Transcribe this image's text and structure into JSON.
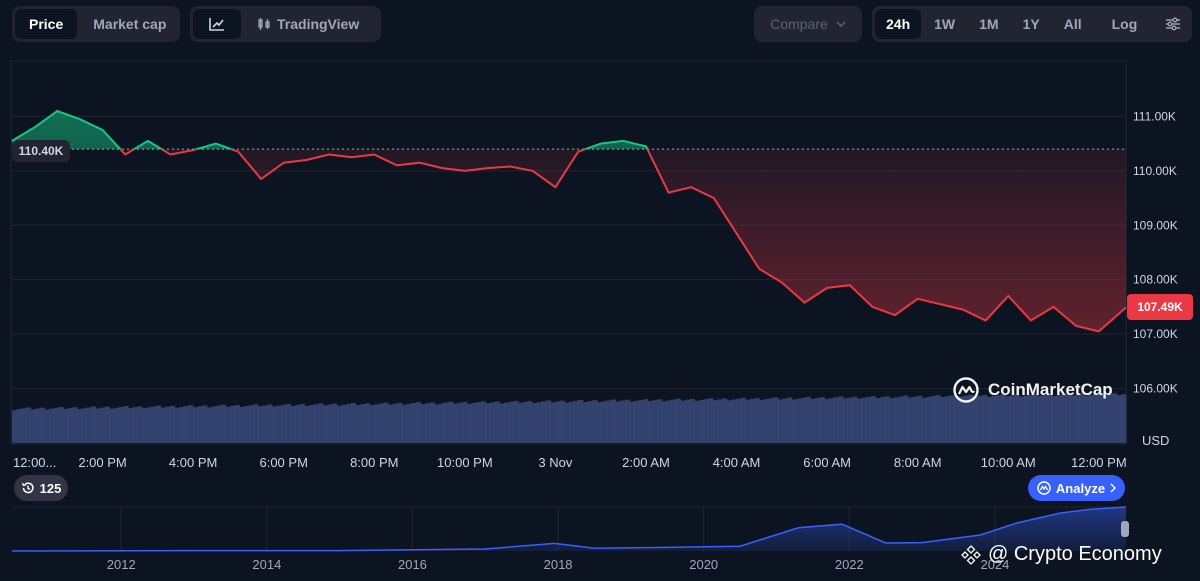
{
  "toolbar": {
    "price_label": "Price",
    "marketcap_label": "Market cap",
    "tradingview_label": "TradingView",
    "compare_label": "Compare",
    "ranges": [
      "24h",
      "1W",
      "1M",
      "1Y",
      "All"
    ],
    "log_label": "Log",
    "active_range": "24h",
    "active_metric": "Price"
  },
  "chart_data": [
    {
      "type": "line",
      "title": "",
      "ylabel": "USD",
      "currency": "USD",
      "ylim": [
        105000,
        112000
      ],
      "yticks": [
        106000,
        107000,
        108000,
        109000,
        110000,
        111000
      ],
      "ytick_labels": [
        "106.00K",
        "107.00K",
        "108.00K",
        "109.00K",
        "110.00K",
        "111.00K"
      ],
      "xlim": [
        0,
        24.6
      ],
      "xticks": [
        0,
        2,
        4,
        6,
        8,
        10,
        12,
        14,
        16,
        18,
        20,
        22,
        24
      ],
      "xtick_labels": [
        "12:00...",
        "2:00 PM",
        "4:00 PM",
        "6:00 PM",
        "8:00 PM",
        "10:00 PM",
        "3 Nov",
        "2:00 AM",
        "4:00 AM",
        "6:00 AM",
        "8:00 AM",
        "10:00 AM",
        "12:00 PM"
      ],
      "baseline": 110400,
      "baseline_label": "110.40K",
      "current_price_label": "107.49K",
      "above_color": "#16c784",
      "below_color": "#ea3943",
      "grid": true,
      "x": [
        0,
        0.5,
        1,
        1.5,
        2,
        2.5,
        3,
        3.5,
        4,
        4.5,
        5,
        5.5,
        6,
        6.5,
        7,
        7.5,
        8,
        8.5,
        9,
        9.5,
        10,
        10.5,
        11,
        11.5,
        12,
        12.5,
        13,
        13.5,
        14,
        14.5,
        15,
        15.5,
        16,
        16.5,
        17,
        17.5,
        18,
        18.5,
        19,
        19.5,
        20,
        20.5,
        21,
        21.5,
        22,
        22.5,
        23,
        23.5,
        24,
        24.6
      ],
      "y": [
        110550,
        110800,
        111100,
        110950,
        110750,
        110300,
        110550,
        110300,
        110380,
        110500,
        110350,
        109850,
        110150,
        110200,
        110300,
        110250,
        110300,
        110100,
        110150,
        110050,
        110000,
        110050,
        110080,
        110000,
        109700,
        110350,
        110500,
        110550,
        110450,
        109600,
        109700,
        109500,
        108850,
        108200,
        107950,
        107580,
        107850,
        107900,
        107500,
        107350,
        107650,
        107550,
        107450,
        107250,
        107700,
        107250,
        107500,
        107150,
        107050,
        107490
      ],
      "volume_color": "#3a4a7a"
    },
    {
      "type": "area",
      "title": "",
      "xlim": [
        2010.5,
        2025.8
      ],
      "xticks": [
        2012,
        2014,
        2016,
        2018,
        2020,
        2022,
        2024
      ],
      "xtick_labels": [
        "2012",
        "2014",
        "2016",
        "2018",
        "2020",
        "2022",
        "2024"
      ],
      "x": [
        2010.5,
        2013,
        2015,
        2017,
        2017.95,
        2018.5,
        2019.5,
        2020.5,
        2021.3,
        2021.9,
        2022.5,
        2023,
        2023.8,
        2024.3,
        2024.9,
        2025.3,
        2025.8
      ],
      "y": [
        0,
        1,
        1,
        5,
        19,
        7,
        9,
        12,
        58,
        67,
        20,
        21,
        40,
        70,
        95,
        104,
        110
      ],
      "color": "#3861fb"
    }
  ],
  "watermark": {
    "brand": "CoinMarketCap"
  },
  "history": {
    "count": "125"
  },
  "analyze": {
    "label": "Analyze"
  },
  "credit": {
    "text": "@ Crypto Economy"
  }
}
